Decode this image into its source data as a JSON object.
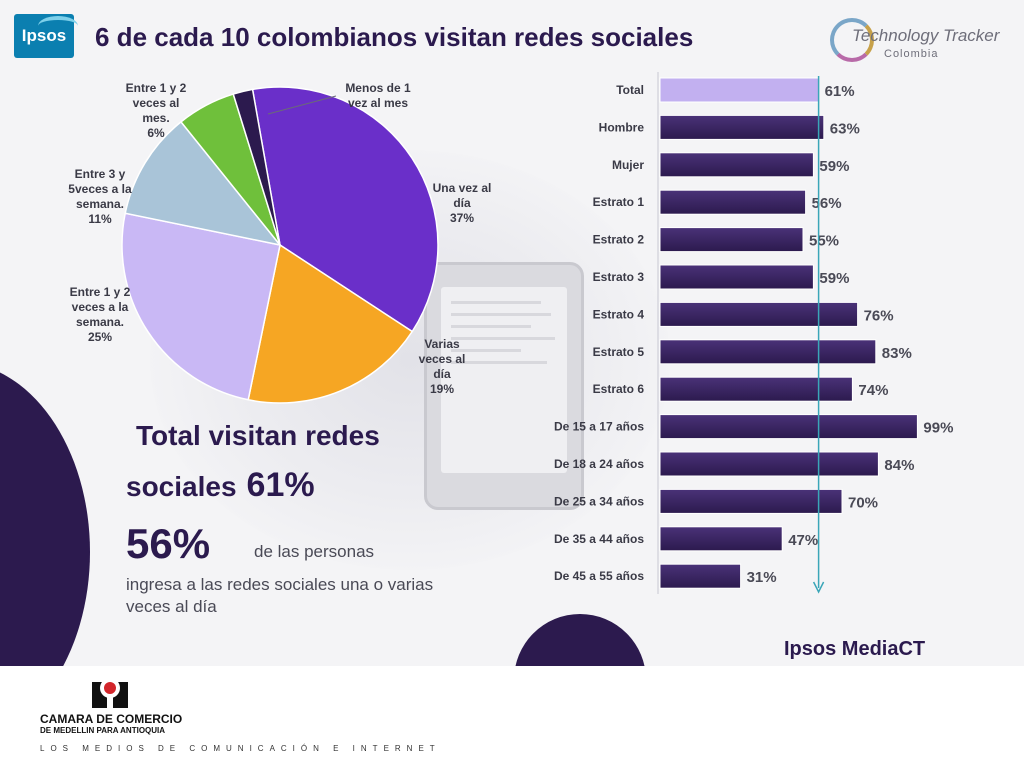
{
  "header": {
    "logo_text": "Ipsos",
    "title": "6 de cada 10 colombianos visitan redes sociales",
    "brand_logo_text": "Technology Tracker",
    "brand_logo_sub": "Colombia"
  },
  "chart_data": [
    {
      "type": "pie",
      "title": "",
      "slices": [
        {
          "label": "Una vez al día",
          "value": 37,
          "value_text": "37%",
          "color": "#6a2fc9"
        },
        {
          "label": "Varias veces al día",
          "value": 19,
          "value_text": "19%",
          "color": "#f6a623"
        },
        {
          "label": "Entre 1 y 2 veces a la semana.",
          "value": 25,
          "value_text": "25%",
          "color": "#c9b8f5"
        },
        {
          "label": "Entre 3 y 5veces a la semana.",
          "value": 11,
          "value_text": "11%",
          "color": "#a9c4d8"
        },
        {
          "label": "Entre 1 y 2 veces al mes.",
          "value": 6,
          "value_text": "6%",
          "color": "#6fc03b"
        },
        {
          "label": "Menos de 1 vez al mes",
          "value": 2,
          "value_text": "",
          "color": "#2c1a4e"
        }
      ]
    },
    {
      "type": "bar",
      "orientation": "horizontal",
      "title": "",
      "xlim": [
        0,
        100
      ],
      "categories": [
        "Total",
        "Hombre",
        "Mujer",
        "Estrato 1",
        "Estrato 2",
        "Estrato 3",
        "Estrato 4",
        "Estrato 5",
        "Estrato 6",
        "De 15 a 17 años",
        "De 18 a 24 años",
        "De 25 a 34 años",
        "De 35 a 44 años",
        "De 45 a 55 años"
      ],
      "values": [
        61,
        63,
        59,
        56,
        55,
        59,
        76,
        83,
        74,
        99,
        84,
        70,
        47,
        31
      ],
      "value_labels": [
        "61%",
        "63%",
        "59%",
        "56%",
        "55%",
        "59%",
        "76%",
        "83%",
        "74%",
        "99%",
        "84%",
        "70%",
        "47%",
        "31%"
      ],
      "highlight_color": "#c2b0f0",
      "bar_color": "#2c1a4e",
      "reference_line_value": 61
    }
  ],
  "stats": {
    "total_line1": "Total  visitan redes",
    "total_line2": "sociales",
    "total_value": "61%",
    "daily_value": "56%",
    "daily_text_a": "de las personas",
    "daily_text_b": "ingresa a las redes sociales una o varias veces al día"
  },
  "source": "Ipsos MediaCT",
  "footer": {
    "org_name": "CAMARA DE COMERCIO",
    "org_sub": "DE MEDELLIN PARA ANTIOQUIA",
    "tagline": "LOS MEDIOS DE COMUNICACIÓN E INTERNET"
  }
}
